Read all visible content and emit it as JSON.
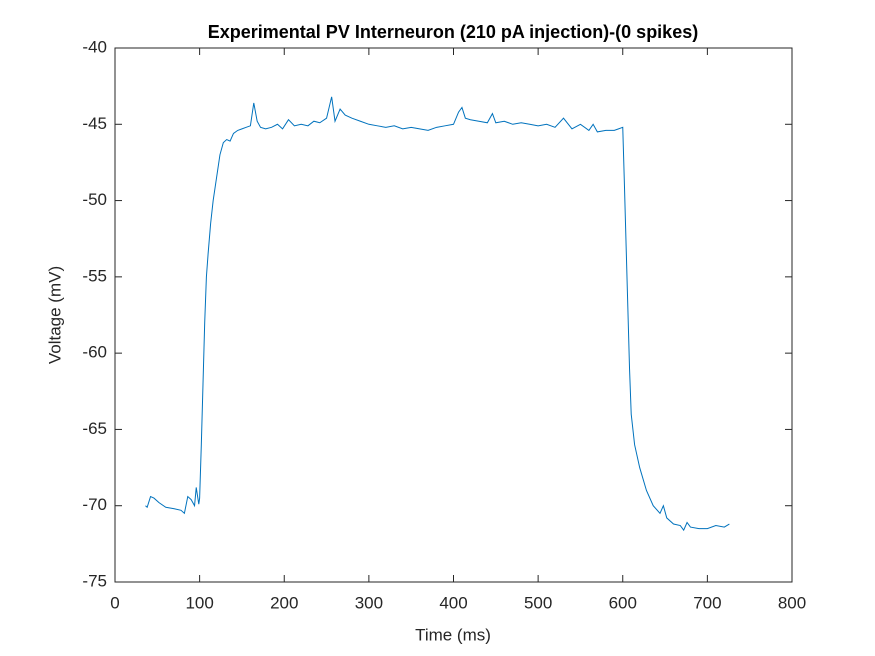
{
  "chart_data": {
    "type": "line",
    "title": "Experimental PV Interneuron (210 pA injection)-(0 spikes)",
    "xlabel": "Time (ms)",
    "ylabel": "Voltage (mV)",
    "color": "#0072bd",
    "xlim": [
      0,
      800
    ],
    "ylim": [
      -75,
      -40
    ],
    "xticks": [
      0,
      100,
      200,
      300,
      400,
      500,
      600,
      700,
      800
    ],
    "yticks": [
      -75,
      -70,
      -65,
      -60,
      -55,
      -50,
      -45,
      -40
    ],
    "x": [
      36,
      38,
      42,
      46,
      52,
      60,
      70,
      78,
      82,
      86,
      90,
      94,
      96,
      99,
      100,
      102,
      104,
      106,
      108,
      110,
      113,
      116,
      120,
      124,
      128,
      132,
      136,
      140,
      145,
      150,
      155,
      160,
      164,
      168,
      172,
      178,
      185,
      192,
      198,
      205,
      212,
      220,
      228,
      235,
      242,
      250,
      256,
      260,
      266,
      272,
      280,
      290,
      300,
      310,
      320,
      330,
      340,
      350,
      360,
      370,
      380,
      390,
      400,
      406,
      410,
      414,
      420,
      430,
      440,
      446,
      450,
      460,
      470,
      480,
      490,
      500,
      510,
      520,
      530,
      540,
      550,
      560,
      565,
      570,
      580,
      590,
      595,
      600,
      602,
      604,
      606,
      608,
      610,
      614,
      620,
      628,
      636,
      644,
      648,
      652,
      660,
      668,
      672,
      676,
      680,
      690,
      700,
      710,
      720,
      726
    ],
    "values": [
      -70,
      -70.1,
      -69.4,
      -69.5,
      -69.8,
      -70.1,
      -70.2,
      -70.3,
      -70.5,
      -69.4,
      -69.6,
      -70.0,
      -68.8,
      -69.9,
      -69.5,
      -66,
      -62,
      -58,
      -55,
      -53.5,
      -51.5,
      -50,
      -48.5,
      -47,
      -46.2,
      -46,
      -46.1,
      -45.6,
      -45.4,
      -45.3,
      -45.2,
      -45.1,
      -43.6,
      -44.8,
      -45.2,
      -45.3,
      -45.2,
      -45.0,
      -45.3,
      -44.7,
      -45.1,
      -45.0,
      -45.1,
      -44.8,
      -44.9,
      -44.6,
      -43.2,
      -44.8,
      -44.0,
      -44.4,
      -44.6,
      -44.8,
      -45.0,
      -45.1,
      -45.2,
      -45.1,
      -45.3,
      -45.2,
      -45.3,
      -45.4,
      -45.2,
      -45.1,
      -45.0,
      -44.2,
      -43.9,
      -44.6,
      -44.7,
      -44.8,
      -44.9,
      -44.3,
      -44.9,
      -44.8,
      -45.0,
      -44.9,
      -45.0,
      -45.1,
      -45.0,
      -45.2,
      -44.6,
      -45.3,
      -45.0,
      -45.4,
      -45.0,
      -45.5,
      -45.4,
      -45.4,
      -45.3,
      -45.2,
      -49,
      -53,
      -57,
      -61,
      -64,
      -66,
      -67.5,
      -69,
      -70,
      -70.5,
      -70.0,
      -70.8,
      -71.2,
      -71.3,
      -71.6,
      -71.1,
      -71.4,
      -71.5,
      -71.5,
      -71.3,
      -71.4,
      -71.2
    ]
  }
}
